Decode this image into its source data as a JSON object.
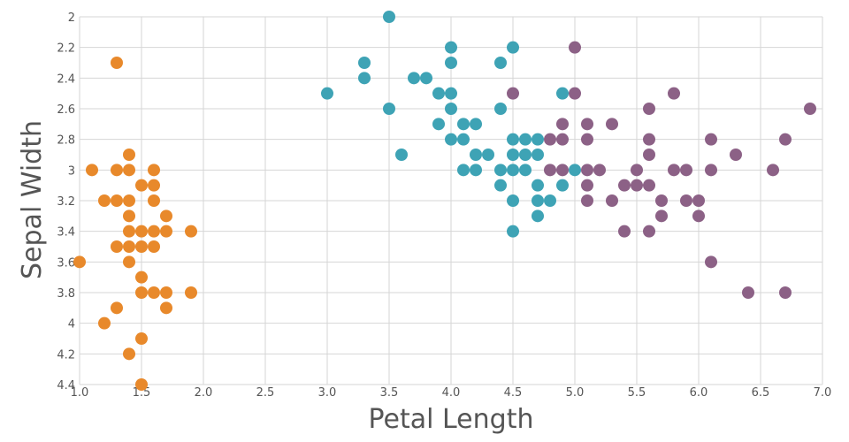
{
  "chart_data": {
    "type": "scatter",
    "title": "",
    "xlabel": "Petal Length",
    "ylabel": "Sepal Width",
    "xlim": [
      1.0,
      7.0
    ],
    "ylim": [
      2.0,
      4.4
    ],
    "y_inverted": true,
    "grid": true,
    "legend": "none",
    "x_ticks": [
      "1.0",
      "1.5",
      "2.0",
      "2.5",
      "3.0",
      "3.5",
      "4.0",
      "4.5",
      "5.0",
      "5.5",
      "6.0",
      "6.5",
      "7.0"
    ],
    "y_ticks": [
      "2",
      "2.2",
      "2.4",
      "2.6",
      "2.8",
      "3",
      "3.2",
      "3.4",
      "3.6",
      "3.8",
      "4",
      "4.2",
      "4.4"
    ],
    "series": [
      {
        "color": "#e8892b",
        "points": [
          [
            1.3,
            2.3
          ],
          [
            1.1,
            3.0
          ],
          [
            1.3,
            3.0
          ],
          [
            1.4,
            3.0
          ],
          [
            1.6,
            3.0
          ],
          [
            1.4,
            2.9
          ],
          [
            1.5,
            3.1
          ],
          [
            1.6,
            3.1
          ],
          [
            1.2,
            3.2
          ],
          [
            1.3,
            3.2
          ],
          [
            1.4,
            3.2
          ],
          [
            1.6,
            3.2
          ],
          [
            1.4,
            3.3
          ],
          [
            1.7,
            3.3
          ],
          [
            1.4,
            3.4
          ],
          [
            1.5,
            3.4
          ],
          [
            1.6,
            3.4
          ],
          [
            1.7,
            3.4
          ],
          [
            1.9,
            3.4
          ],
          [
            1.3,
            3.5
          ],
          [
            1.4,
            3.5
          ],
          [
            1.5,
            3.5
          ],
          [
            1.6,
            3.5
          ],
          [
            1.0,
            3.6
          ],
          [
            1.4,
            3.6
          ],
          [
            1.5,
            3.7
          ],
          [
            1.5,
            3.8
          ],
          [
            1.6,
            3.8
          ],
          [
            1.7,
            3.8
          ],
          [
            1.9,
            3.8
          ],
          [
            1.3,
            3.9
          ],
          [
            1.7,
            3.9
          ],
          [
            1.2,
            4.0
          ],
          [
            1.5,
            4.1
          ],
          [
            1.4,
            4.2
          ],
          [
            1.5,
            4.4
          ]
        ]
      },
      {
        "color": "#3ea3b5",
        "points": [
          [
            3.5,
            2.0
          ],
          [
            4.0,
            2.2
          ],
          [
            4.5,
            2.2
          ],
          [
            3.3,
            2.3
          ],
          [
            4.0,
            2.3
          ],
          [
            4.4,
            2.3
          ],
          [
            3.3,
            2.4
          ],
          [
            3.7,
            2.4
          ],
          [
            3.8,
            2.4
          ],
          [
            3.9,
            2.5
          ],
          [
            4.0,
            2.5
          ],
          [
            4.9,
            2.5
          ],
          [
            3.0,
            2.5
          ],
          [
            3.5,
            2.6
          ],
          [
            4.0,
            2.6
          ],
          [
            4.4,
            2.6
          ],
          [
            3.9,
            2.7
          ],
          [
            4.1,
            2.7
          ],
          [
            4.2,
            2.7
          ],
          [
            4.0,
            2.8
          ],
          [
            4.1,
            2.8
          ],
          [
            4.5,
            2.8
          ],
          [
            4.6,
            2.8
          ],
          [
            4.7,
            2.8
          ],
          [
            3.6,
            2.9
          ],
          [
            4.2,
            2.9
          ],
          [
            4.3,
            2.9
          ],
          [
            4.5,
            2.9
          ],
          [
            4.6,
            2.9
          ],
          [
            4.7,
            2.9
          ],
          [
            4.1,
            3.0
          ],
          [
            4.2,
            3.0
          ],
          [
            4.4,
            3.0
          ],
          [
            4.5,
            3.0
          ],
          [
            4.6,
            3.0
          ],
          [
            5.0,
            3.0
          ],
          [
            4.4,
            3.1
          ],
          [
            4.7,
            3.1
          ],
          [
            4.9,
            3.1
          ],
          [
            4.5,
            3.2
          ],
          [
            4.7,
            3.2
          ],
          [
            4.8,
            3.2
          ],
          [
            4.7,
            3.3
          ],
          [
            4.5,
            3.4
          ]
        ]
      },
      {
        "color": "#8c6186",
        "points": [
          [
            5.0,
            2.2
          ],
          [
            4.5,
            2.5
          ],
          [
            5.0,
            2.5
          ],
          [
            5.8,
            2.5
          ],
          [
            5.6,
            2.6
          ],
          [
            6.9,
            2.6
          ],
          [
            4.9,
            2.7
          ],
          [
            5.1,
            2.7
          ],
          [
            5.3,
            2.7
          ],
          [
            4.8,
            2.8
          ],
          [
            4.9,
            2.8
          ],
          [
            5.1,
            2.8
          ],
          [
            5.6,
            2.8
          ],
          [
            6.1,
            2.8
          ],
          [
            6.7,
            2.8
          ],
          [
            5.6,
            2.9
          ],
          [
            6.3,
            2.9
          ],
          [
            4.8,
            3.0
          ],
          [
            4.9,
            3.0
          ],
          [
            5.1,
            3.0
          ],
          [
            5.2,
            3.0
          ],
          [
            5.5,
            3.0
          ],
          [
            5.8,
            3.0
          ],
          [
            5.9,
            3.0
          ],
          [
            6.1,
            3.0
          ],
          [
            6.6,
            3.0
          ],
          [
            5.1,
            3.1
          ],
          [
            5.4,
            3.1
          ],
          [
            5.5,
            3.1
          ],
          [
            5.6,
            3.1
          ],
          [
            5.1,
            3.2
          ],
          [
            5.3,
            3.2
          ],
          [
            5.7,
            3.2
          ],
          [
            5.9,
            3.2
          ],
          [
            6.0,
            3.2
          ],
          [
            5.7,
            3.3
          ],
          [
            6.0,
            3.3
          ],
          [
            5.4,
            3.4
          ],
          [
            5.6,
            3.4
          ],
          [
            6.1,
            3.6
          ],
          [
            6.4,
            3.8
          ],
          [
            6.7,
            3.8
          ]
        ]
      }
    ]
  }
}
